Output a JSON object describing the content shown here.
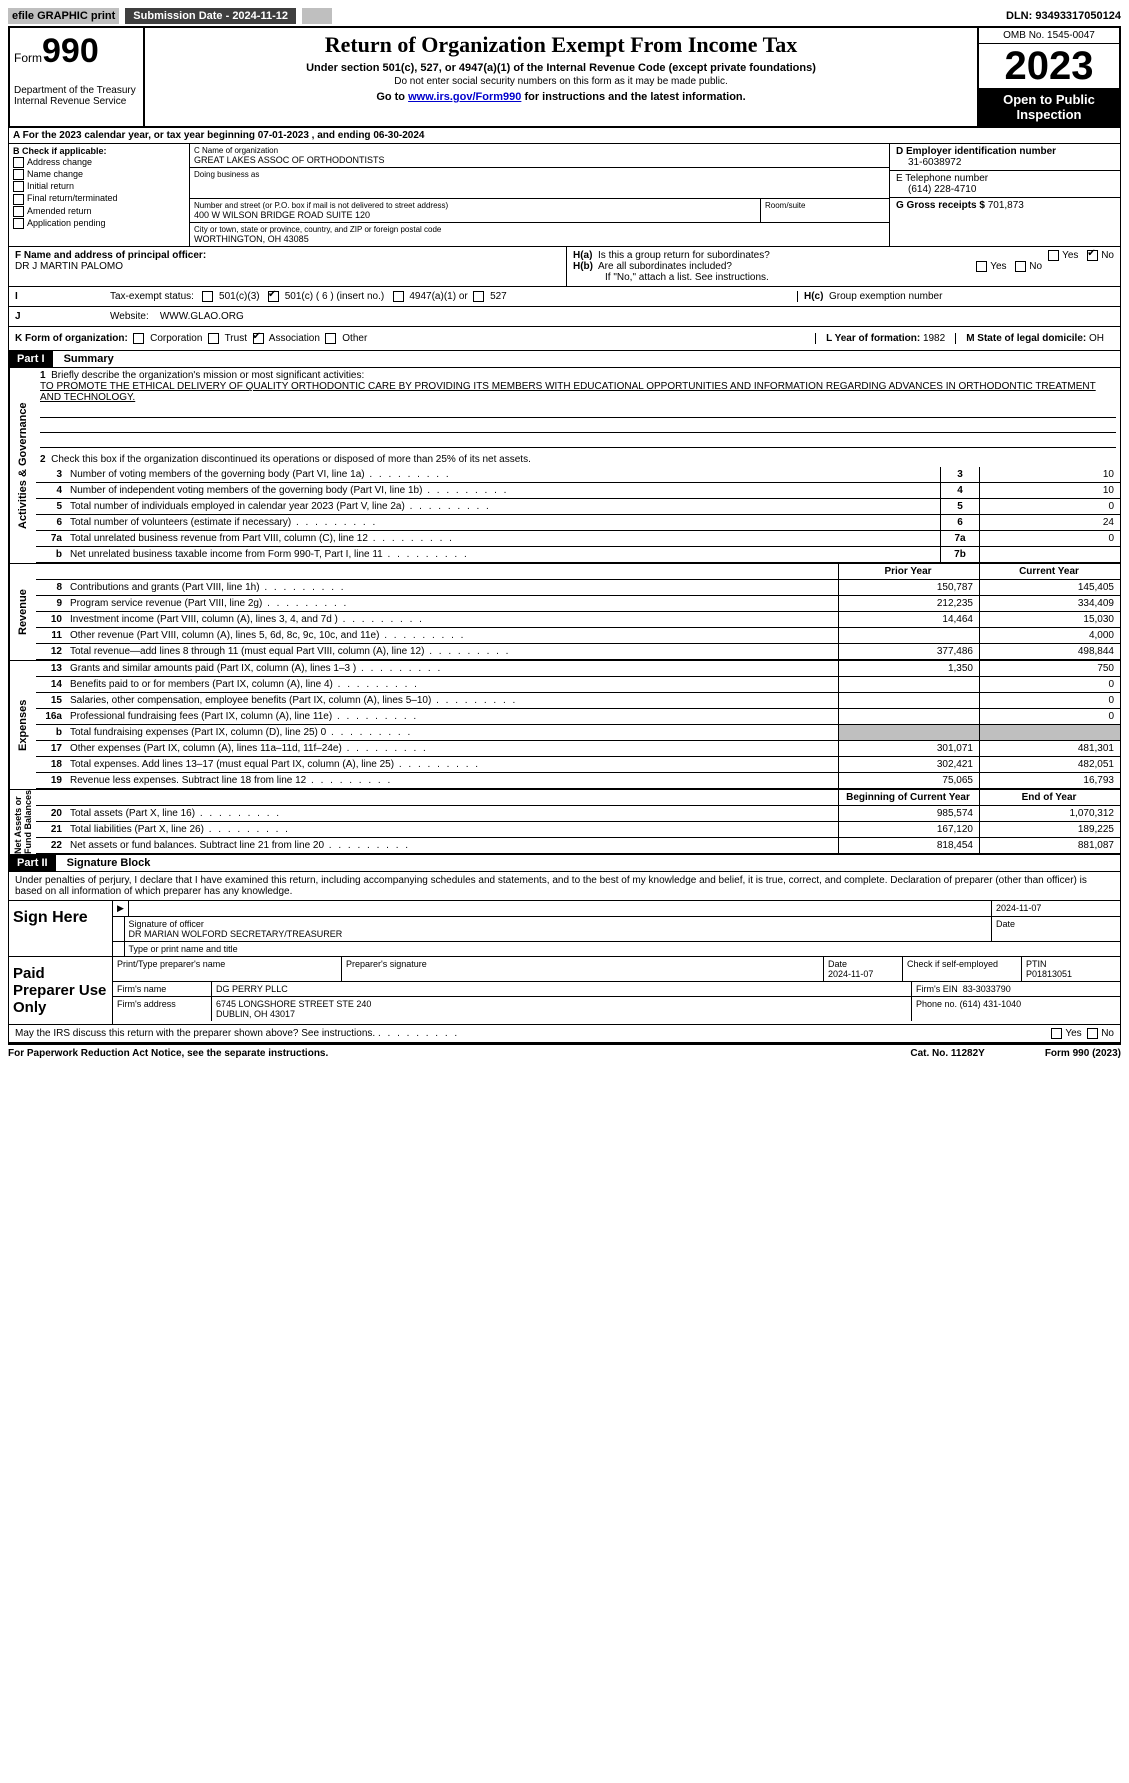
{
  "topbar": {
    "efile": "efile GRAPHIC print",
    "submission": "Submission Date - 2024-11-12",
    "dln": "DLN: 93493317050124"
  },
  "header": {
    "form_label": "Form",
    "form_no": "990",
    "dept": "Department of the Treasury\nInternal Revenue Service",
    "title": "Return of Organization Exempt From Income Tax",
    "sub": "Under section 501(c), 527, or 4947(a)(1) of the Internal Revenue Code (except private foundations)",
    "note1": "Do not enter social security numbers on this form as it may be made public.",
    "goto_pre": "Go to ",
    "goto_link": "www.irs.gov/Form990",
    "goto_post": " for instructions and the latest information.",
    "omb": "OMB No. 1545-0047",
    "year": "2023",
    "otp": "Open to Public Inspection"
  },
  "A": "A For the 2023 calendar year, or tax year beginning 07-01-2023    , and ending 06-30-2024",
  "B": {
    "label": "B Check if applicable:",
    "items": [
      "Address change",
      "Name change",
      "Initial return",
      "Final return/terminated",
      "Amended return",
      "Application pending"
    ]
  },
  "C": {
    "name_label": "C Name of organization",
    "name": "GREAT LAKES ASSOC OF ORTHODONTISTS",
    "dba_label": "Doing business as",
    "dba": "",
    "street_label": "Number and street (or P.O. box if mail is not delivered to street address)",
    "street": "400 W WILSON BRIDGE ROAD SUITE 120",
    "room_label": "Room/suite",
    "city_label": "City or town, state or province, country, and ZIP or foreign postal code",
    "city": "WORTHINGTON, OH  43085"
  },
  "D": {
    "label": "D Employer identification number",
    "val": "31-6038972"
  },
  "E": {
    "label": "E Telephone number",
    "val": "(614) 228-4710"
  },
  "G": {
    "label": "G Gross receipts $",
    "val": "701,873"
  },
  "F": {
    "label": "F  Name and address of principal officer:",
    "val": "DR J MARTIN PALOMO"
  },
  "H": {
    "a": "Is this a group return for subordinates?",
    "b": "Are all subordinates included?",
    "b_note": "If \"No,\" attach a list. See instructions.",
    "c": "Group exemption number"
  },
  "I": {
    "label": "Tax-exempt status:",
    "opts": [
      "501(c)(3)",
      "501(c) ( 6 ) (insert no.)",
      "4947(a)(1) or",
      "527"
    ]
  },
  "J": {
    "label": "Website:",
    "val": "WWW.GLAO.ORG"
  },
  "K": {
    "label": "K Form of organization:",
    "opts": [
      "Corporation",
      "Trust",
      "Association",
      "Other"
    ],
    "checked": 2
  },
  "L": {
    "label": "L Year of formation:",
    "val": "1982"
  },
  "M": {
    "label": "M State of legal domicile:",
    "val": "OH"
  },
  "partI": {
    "hdr": "Part I",
    "title": "Summary"
  },
  "summary": {
    "line1_label": "Briefly describe the organization's mission or most significant activities:",
    "line1_text": "TO PROMOTE THE ETHICAL DELIVERY OF QUALITY ORTHODONTIC CARE BY PROVIDING ITS MEMBERS WITH EDUCATIONAL OPPORTUNITIES AND INFORMATION REGARDING ADVANCES IN ORTHODONTIC TREATMENT AND TECHNOLOGY.",
    "line2": "Check this box      if the organization discontinued its operations or disposed of more than 25% of its net assets.",
    "rows_ag": [
      {
        "n": "3",
        "t": "Number of voting members of the governing body (Part VI, line 1a)",
        "box": "3",
        "v": "10"
      },
      {
        "n": "4",
        "t": "Number of independent voting members of the governing body (Part VI, line 1b)",
        "box": "4",
        "v": "10"
      },
      {
        "n": "5",
        "t": "Total number of individuals employed in calendar year 2023 (Part V, line 2a)",
        "box": "5",
        "v": "0"
      },
      {
        "n": "6",
        "t": "Total number of volunteers (estimate if necessary)",
        "box": "6",
        "v": "24"
      },
      {
        "n": "7a",
        "t": "Total unrelated business revenue from Part VIII, column (C), line 12",
        "box": "7a",
        "v": "0"
      },
      {
        "n": "b",
        "t": "Net unrelated business taxable income from Form 990-T, Part I, line 11",
        "box": "7b",
        "v": ""
      }
    ],
    "col_hdr": {
      "py": "Prior Year",
      "cy": "Current Year"
    },
    "rows_rev": [
      {
        "n": "8",
        "t": "Contributions and grants (Part VIII, line 1h)",
        "py": "150,787",
        "cy": "145,405"
      },
      {
        "n": "9",
        "t": "Program service revenue (Part VIII, line 2g)",
        "py": "212,235",
        "cy": "334,409"
      },
      {
        "n": "10",
        "t": "Investment income (Part VIII, column (A), lines 3, 4, and 7d )",
        "py": "14,464",
        "cy": "15,030"
      },
      {
        "n": "11",
        "t": "Other revenue (Part VIII, column (A), lines 5, 6d, 8c, 9c, 10c, and 11e)",
        "py": "",
        "cy": "4,000"
      },
      {
        "n": "12",
        "t": "Total revenue—add lines 8 through 11 (must equal Part VIII, column (A), line 12)",
        "py": "377,486",
        "cy": "498,844"
      }
    ],
    "rows_exp": [
      {
        "n": "13",
        "t": "Grants and similar amounts paid (Part IX, column (A), lines 1–3 )",
        "py": "1,350",
        "cy": "750"
      },
      {
        "n": "14",
        "t": "Benefits paid to or for members (Part IX, column (A), line 4)",
        "py": "",
        "cy": "0"
      },
      {
        "n": "15",
        "t": "Salaries, other compensation, employee benefits (Part IX, column (A), lines 5–10)",
        "py": "",
        "cy": "0"
      },
      {
        "n": "16a",
        "t": "Professional fundraising fees (Part IX, column (A), line 11e)",
        "py": "",
        "cy": "0"
      },
      {
        "n": "b",
        "t": "Total fundraising expenses (Part IX, column (D), line 25) 0",
        "py": "grey",
        "cy": "grey"
      },
      {
        "n": "17",
        "t": "Other expenses (Part IX, column (A), lines 11a–11d, 11f–24e)",
        "py": "301,071",
        "cy": "481,301"
      },
      {
        "n": "18",
        "t": "Total expenses. Add lines 13–17 (must equal Part IX, column (A), line 25)",
        "py": "302,421",
        "cy": "482,051"
      },
      {
        "n": "19",
        "t": "Revenue less expenses. Subtract line 18 from line 12",
        "py": "75,065",
        "cy": "16,793"
      }
    ],
    "col_hdr2": {
      "py": "Beginning of Current Year",
      "cy": "End of Year"
    },
    "rows_na": [
      {
        "n": "20",
        "t": "Total assets (Part X, line 16)",
        "py": "985,574",
        "cy": "1,070,312"
      },
      {
        "n": "21",
        "t": "Total liabilities (Part X, line 26)",
        "py": "167,120",
        "cy": "189,225"
      },
      {
        "n": "22",
        "t": "Net assets or fund balances. Subtract line 21 from line 20",
        "py": "818,454",
        "cy": "881,087"
      }
    ]
  },
  "vtabs": {
    "ag": "Activities & Governance",
    "rev": "Revenue",
    "exp": "Expenses",
    "na": "Net Assets or\nFund Balances"
  },
  "partII": {
    "hdr": "Part II",
    "title": "Signature Block"
  },
  "sig": {
    "decl": "Under penalties of perjury, I declare that I have examined this return, including accompanying schedules and statements, and to the best of my knowledge and belief, it is true, correct, and complete. Declaration of preparer (other than officer) is based on all information of which preparer has any knowledge.",
    "sign_here": "Sign Here",
    "date1": "2024-11-07",
    "sig_label": "Signature of officer",
    "officer": "DR MARIAN WOLFORD  SECRETARY/TREASURER",
    "type_label": "Type or print name and title",
    "paid": "Paid Preparer Use Only",
    "pt_label": "Print/Type preparer's name",
    "ps_label": "Preparer's signature",
    "date_label": "Date",
    "date2": "2024-11-07",
    "check_label": "Check      if self-employed",
    "ptin_label": "PTIN",
    "ptin": "P01813051",
    "firm_name_label": "Firm's name",
    "firm_name": "DG PERRY PLLC",
    "firm_ein_label": "Firm's EIN",
    "firm_ein": "83-3033790",
    "firm_addr_label": "Firm's address",
    "firm_addr1": "6745 LONGSHORE STREET STE 240",
    "firm_addr2": "DUBLIN, OH  43017",
    "phone_label": "Phone no.",
    "phone": "(614) 431-1040",
    "discuss": "May the IRS discuss this return with the preparer shown above? See instructions."
  },
  "footer": {
    "pra": "For Paperwork Reduction Act Notice, see the separate instructions.",
    "cat": "Cat. No. 11282Y",
    "form": "Form 990 (2023)"
  },
  "yes": "Yes",
  "no": "No"
}
